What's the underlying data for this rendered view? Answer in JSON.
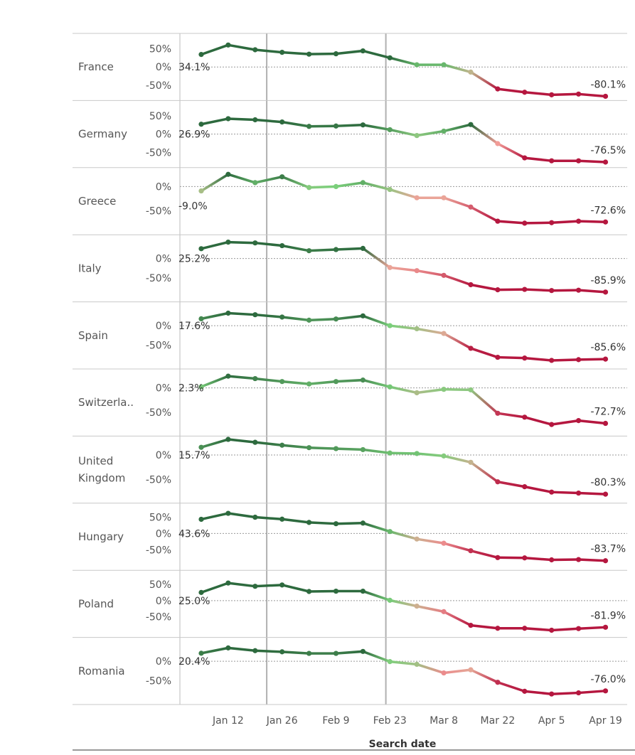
{
  "chart_data": {
    "type": "line",
    "title": "",
    "xlabel": "Search date",
    "x": [
      "Jan 5",
      "Jan 12",
      "Jan 19",
      "Jan 26",
      "Feb 2",
      "Feb 9",
      "Feb 16",
      "Feb 23",
      "Mar 1",
      "Mar 8",
      "Mar 15",
      "Mar 22",
      "Mar 29",
      "Apr 5",
      "Apr 12",
      "Apr 19"
    ],
    "x_tick_labels": [
      "Jan 12",
      "Jan 26",
      "Feb 9",
      "Feb 23",
      "Mar 8",
      "Mar 22",
      "Apr 5",
      "Apr 19"
    ],
    "reference_lines": [
      "Jan 22",
      "Feb 22"
    ],
    "color_scale": {
      "high": "#2d6a3e",
      "mid_high": "#7bcf7b",
      "mid_low": "#f4a09a",
      "low": "#b5173f"
    },
    "series": [
      {
        "name": "France",
        "label_lines": [
          "France"
        ],
        "ylim": [
          -80,
          80
        ],
        "ticks": [
          50,
          0,
          -50
        ],
        "tick_labels": [
          "50%",
          "0%",
          "-50%"
        ],
        "start_label": "34.1%",
        "end_label": "-80.1%",
        "values": [
          34.1,
          60,
          47,
          40,
          35,
          36,
          44,
          25,
          6,
          6,
          -14,
          -60,
          -69,
          -76,
          -74,
          -80.1
        ]
      },
      {
        "name": "Germany",
        "label_lines": [
          "Germany"
        ],
        "ylim": [
          -80,
          80
        ],
        "ticks": [
          50,
          0,
          -50
        ],
        "tick_labels": [
          "50%",
          "0%",
          "-50%"
        ],
        "start_label": "26.9%",
        "end_label": "-76.5%",
        "values": [
          26.9,
          42,
          39,
          33,
          21,
          22,
          25,
          12,
          -4,
          8,
          26,
          -26,
          -65,
          -73,
          -73,
          -76.5
        ]
      },
      {
        "name": "Greece",
        "label_lines": [
          "Greece"
        ],
        "ylim": [
          -90,
          30
        ],
        "ticks": [
          0,
          -50
        ],
        "tick_labels": [
          "0%",
          "-50%"
        ],
        "start_label": "-9.0%",
        "end_label": "-72.6%",
        "values": [
          -9,
          25,
          8,
          20,
          -2,
          0,
          8,
          -6,
          -23,
          -23,
          -42,
          -71,
          -75,
          -74,
          -71,
          -72.6
        ]
      },
      {
        "name": "Italy",
        "label_lines": [
          "Italy"
        ],
        "ylim": [
          -100,
          50
        ],
        "ticks": [
          0,
          -50
        ],
        "tick_labels": [
          "0%",
          "-50%"
        ],
        "start_label": "25.2%",
        "end_label": "-85.9%",
        "values": [
          25.2,
          42,
          40,
          33,
          20,
          23,
          26,
          -23,
          -31,
          -43,
          -67,
          -80,
          -79,
          -82,
          -81,
          -85.9
        ]
      },
      {
        "name": "Spain",
        "label_lines": [
          "Spain"
        ],
        "ylim": [
          -100,
          50
        ],
        "ticks": [
          0,
          -50
        ],
        "tick_labels": [
          "0%",
          "-50%"
        ],
        "start_label": "17.6%",
        "end_label": "-85.6%",
        "values": [
          17.6,
          32,
          28,
          22,
          14,
          17,
          25,
          0,
          -8,
          -20,
          -58,
          -81,
          -83,
          -89,
          -87,
          -85.6
        ]
      },
      {
        "name": "Switzerland",
        "label_lines": [
          "Switzerla.."
        ],
        "ylim": [
          -90,
          30
        ],
        "ticks": [
          0,
          -50
        ],
        "tick_labels": [
          "0%",
          "-50%"
        ],
        "start_label": "2.3%",
        "end_label": "-72.7%",
        "values": [
          2.3,
          24,
          19,
          13,
          8,
          13,
          16,
          2,
          -10,
          -3,
          -4,
          -52,
          -60,
          -75,
          -67,
          -72.7
        ]
      },
      {
        "name": "United Kingdom",
        "label_lines": [
          "United",
          "Kingdom"
        ],
        "ylim": [
          -90,
          30
        ],
        "ticks": [
          0,
          -50
        ],
        "tick_labels": [
          "0%",
          "-50%"
        ],
        "start_label": "15.7%",
        "end_label": "-80.3%",
        "values": [
          15.7,
          32,
          26,
          20,
          15,
          13,
          11,
          4,
          3,
          -2,
          -15,
          -55,
          -65,
          -76,
          -78,
          -80.3
        ]
      },
      {
        "name": "Hungary",
        "label_lines": [
          "Hungary"
        ],
        "ylim": [
          -100,
          80
        ],
        "ticks": [
          50,
          0,
          -50
        ],
        "tick_labels": [
          "50%",
          "0%",
          "-50%"
        ],
        "start_label": "43.6%",
        "end_label": "-83.7%",
        "values": [
          43.6,
          62,
          50,
          44,
          34,
          30,
          32,
          6,
          -17,
          -30,
          -53,
          -74,
          -75,
          -81,
          -80,
          -83.7
        ]
      },
      {
        "name": "Poland",
        "label_lines": [
          "Poland"
        ],
        "ylim": [
          -100,
          80
        ],
        "ticks": [
          50,
          0,
          -50
        ],
        "tick_labels": [
          "50%",
          "0%",
          "-50%"
        ],
        "start_label": "25.0%",
        "end_label": "-81.9%",
        "values": [
          25,
          54,
          44,
          48,
          28,
          29,
          29,
          1,
          -17,
          -34,
          -76,
          -85,
          -85,
          -91,
          -86,
          -81.9
        ]
      },
      {
        "name": "Romania",
        "label_lines": [
          "Romania"
        ],
        "ylim": [
          -100,
          50
        ],
        "ticks": [
          0,
          -50
        ],
        "tick_labels": [
          "0%",
          "-50%"
        ],
        "start_label": "20.4%",
        "end_label": "-76.0%",
        "values": [
          20.4,
          34,
          27,
          24,
          20,
          20,
          25,
          -1,
          -8,
          -30,
          -22,
          -54,
          -77,
          -84,
          -81,
          -76
        ]
      }
    ]
  }
}
